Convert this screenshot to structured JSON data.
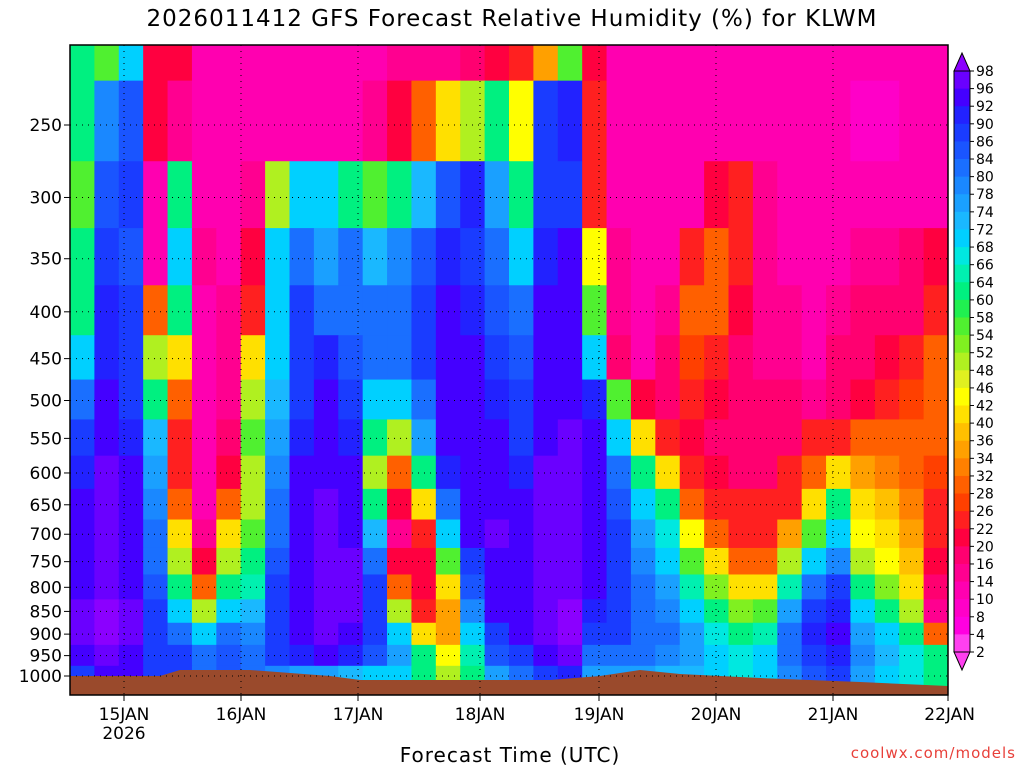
{
  "title": "2026011412 GFS Forecast Relative Humidity (%) for KLWM",
  "x_axis_title": "Forecast Time (UTC)",
  "credit": "coolwx.com/models",
  "colors": {
    "ground": "#9a4a2c",
    "grid": "#000000"
  },
  "chart_data": {
    "type": "heatmap",
    "title": "2026011412 GFS Forecast Relative Humidity (%) for KLWM",
    "xlabel": "Forecast Time (UTC)",
    "ylabel": "",
    "y_scale": "log",
    "y_ticks": [
      250,
      300,
      350,
      400,
      450,
      500,
      550,
      600,
      650,
      700,
      750,
      800,
      850,
      900,
      950,
      1000
    ],
    "x_ticks": [
      {
        "label": "15JAN",
        "sub": "2026"
      },
      {
        "label": "16JAN",
        "sub": ""
      },
      {
        "label": "17JAN",
        "sub": ""
      },
      {
        "label": "18JAN",
        "sub": ""
      },
      {
        "label": "19JAN",
        "sub": ""
      },
      {
        "label": "20JAN",
        "sub": ""
      },
      {
        "label": "21JAN",
        "sub": ""
      },
      {
        "label": "22JAN",
        "sub": ""
      }
    ],
    "grid": true,
    "colorbar": {
      "labels": [
        98,
        96,
        92,
        90,
        86,
        84,
        80,
        78,
        74,
        72,
        68,
        66,
        64,
        60,
        58,
        54,
        52,
        48,
        46,
        42,
        40,
        36,
        34,
        32,
        28,
        26,
        22,
        20,
        16,
        14,
        10,
        8,
        4,
        2
      ],
      "colors": [
        "#8b00ff",
        "#6a00ff",
        "#4400ff",
        "#2222ff",
        "#1a3cff",
        "#1a55ff",
        "#1a6fff",
        "#1a88ff",
        "#1aa0ff",
        "#1ab8ff",
        "#00d0ff",
        "#00e8e0",
        "#00f0b0",
        "#00f080",
        "#20f050",
        "#50f030",
        "#80f020",
        "#b0f020",
        "#e0f020",
        "#ffff00",
        "#ffe000",
        "#ffc000",
        "#ffa000",
        "#ff8000",
        "#ff6000",
        "#ff4000",
        "#ff2020",
        "#ff0040",
        "#ff0070",
        "#ff0090",
        "#ff00b0",
        "#ff00c8",
        "#ff00e0",
        "#ff40f0"
      ]
    },
    "rows": [
      {
        "level": 200,
        "values": [
          62,
          55,
          70,
          20,
          20,
          10,
          10,
          10,
          10,
          10,
          10,
          10,
          12,
          15,
          15,
          15,
          18,
          20,
          22,
          35,
          55,
          20,
          12,
          10,
          10,
          10,
          10,
          10,
          10,
          10,
          10,
          10,
          10,
          10,
          10,
          10
        ]
      },
      {
        "level": 250,
        "values": [
          60,
          78,
          85,
          20,
          15,
          12,
          10,
          10,
          10,
          10,
          10,
          12,
          15,
          20,
          30,
          40,
          50,
          60,
          45,
          88,
          90,
          25,
          12,
          10,
          10,
          10,
          10,
          10,
          10,
          10,
          10,
          10,
          8,
          8,
          10,
          10
        ]
      },
      {
        "level": 300,
        "values": [
          55,
          85,
          88,
          10,
          60,
          12,
          12,
          15,
          50,
          70,
          70,
          60,
          55,
          60,
          72,
          85,
          90,
          75,
          60,
          88,
          88,
          25,
          12,
          10,
          10,
          12,
          20,
          22,
          14,
          10,
          10,
          10,
          10,
          10,
          10,
          12
        ]
      },
      {
        "level": 350,
        "values": [
          60,
          88,
          85,
          12,
          70,
          15,
          12,
          20,
          68,
          80,
          75,
          80,
          72,
          78,
          85,
          90,
          88,
          80,
          70,
          90,
          92,
          45,
          15,
          12,
          12,
          25,
          30,
          25,
          15,
          12,
          10,
          12,
          14,
          15,
          16,
          20
        ]
      },
      {
        "level": 400,
        "values": [
          62,
          90,
          88,
          30,
          60,
          12,
          15,
          25,
          70,
          86,
          80,
          82,
          80,
          82,
          88,
          92,
          90,
          84,
          80,
          92,
          94,
          55,
          15,
          12,
          15,
          30,
          28,
          20,
          15,
          14,
          12,
          14,
          16,
          18,
          18,
          24
        ]
      },
      {
        "level": 450,
        "values": [
          70,
          90,
          86,
          50,
          40,
          10,
          15,
          40,
          70,
          88,
          90,
          85,
          82,
          80,
          86,
          92,
          94,
          86,
          84,
          92,
          94,
          70,
          18,
          12,
          16,
          26,
          24,
          18,
          15,
          14,
          12,
          16,
          18,
          20,
          22,
          28
        ]
      },
      {
        "level": 500,
        "values": [
          80,
          92,
          88,
          60,
          30,
          10,
          15,
          50,
          72,
          88,
          92,
          88,
          70,
          70,
          80,
          92,
          94,
          90,
          86,
          94,
          95,
          90,
          55,
          20,
          18,
          24,
          20,
          18,
          16,
          16,
          15,
          18,
          20,
          24,
          26,
          30
        ]
      },
      {
        "level": 550,
        "values": [
          88,
          94,
          90,
          72,
          22,
          10,
          18,
          55,
          75,
          90,
          94,
          90,
          60,
          50,
          75,
          92,
          95,
          92,
          88,
          95,
          96,
          92,
          70,
          40,
          25,
          20,
          18,
          18,
          16,
          18,
          22,
          24,
          28,
          30,
          30,
          30
        ]
      },
      {
        "level": 600,
        "values": [
          90,
          96,
          92,
          76,
          25,
          10,
          20,
          50,
          78,
          92,
          95,
          92,
          50,
          30,
          60,
          90,
          95,
          94,
          90,
          96,
          96,
          92,
          80,
          60,
          40,
          22,
          20,
          18,
          18,
          22,
          30,
          40,
          34,
          32,
          30,
          26
        ]
      },
      {
        "level": 650,
        "values": [
          92,
          96,
          92,
          78,
          30,
          12,
          30,
          48,
          80,
          92,
          96,
          94,
          60,
          20,
          40,
          80,
          94,
          95,
          92,
          96,
          97,
          92,
          84,
          70,
          60,
          30,
          25,
          22,
          22,
          25,
          40,
          60,
          40,
          36,
          32,
          24
        ]
      },
      {
        "level": 700,
        "values": [
          94,
          97,
          94,
          80,
          40,
          15,
          40,
          55,
          82,
          94,
          96,
          95,
          72,
          15,
          25,
          70,
          92,
          96,
          94,
          96,
          97,
          92,
          86,
          75,
          66,
          44,
          30,
          25,
          25,
          35,
          55,
          70,
          44,
          40,
          34,
          22
        ]
      },
      {
        "level": 750,
        "values": [
          94,
          97,
          94,
          82,
          50,
          20,
          50,
          60,
          84,
          94,
          97,
          96,
          80,
          20,
          20,
          55,
          88,
          95,
          95,
          97,
          97,
          92,
          88,
          78,
          70,
          55,
          40,
          30,
          30,
          50,
          70,
          78,
          50,
          45,
          36,
          20
        ]
      },
      {
        "level": 800,
        "values": [
          95,
          97,
          95,
          84,
          60,
          30,
          60,
          65,
          86,
          95,
          97,
          96,
          86,
          30,
          20,
          40,
          84,
          94,
          95,
          97,
          97,
          92,
          88,
          80,
          74,
          64,
          52,
          40,
          40,
          65,
          82,
          86,
          60,
          52,
          40,
          18
        ]
      },
      {
        "level": 850,
        "values": [
          96,
          98,
          96,
          86,
          70,
          50,
          70,
          72,
          88,
          95,
          97,
          96,
          88,
          50,
          25,
          35,
          78,
          92,
          94,
          97,
          98,
          90,
          88,
          82,
          78,
          70,
          60,
          52,
          55,
          75,
          88,
          90,
          70,
          60,
          50,
          14
        ]
      },
      {
        "level": 900,
        "values": [
          96,
          98,
          96,
          88,
          80,
          70,
          80,
          78,
          88,
          94,
          96,
          95,
          88,
          70,
          40,
          35,
          70,
          88,
          92,
          96,
          98,
          86,
          86,
          82,
          80,
          76,
          66,
          60,
          65,
          80,
          90,
          92,
          76,
          68,
          60,
          30
        ]
      },
      {
        "level": 950,
        "values": [
          94,
          97,
          95,
          88,
          86,
          80,
          84,
          82,
          86,
          90,
          92,
          90,
          84,
          76,
          60,
          45,
          65,
          84,
          88,
          94,
          96,
          82,
          82,
          80,
          78,
          76,
          70,
          66,
          70,
          82,
          88,
          90,
          78,
          72,
          66,
          60
        ]
      },
      {
        "level": 1000,
        "values": [
          88,
          94,
          92,
          86,
          86,
          82,
          84,
          80,
          78,
          76,
          74,
          72,
          70,
          70,
          62,
          50,
          60,
          76,
          80,
          88,
          90,
          76,
          76,
          74,
          72,
          72,
          68,
          66,
          68,
          78,
          84,
          86,
          74,
          70,
          66,
          62
        ]
      }
    ]
  }
}
